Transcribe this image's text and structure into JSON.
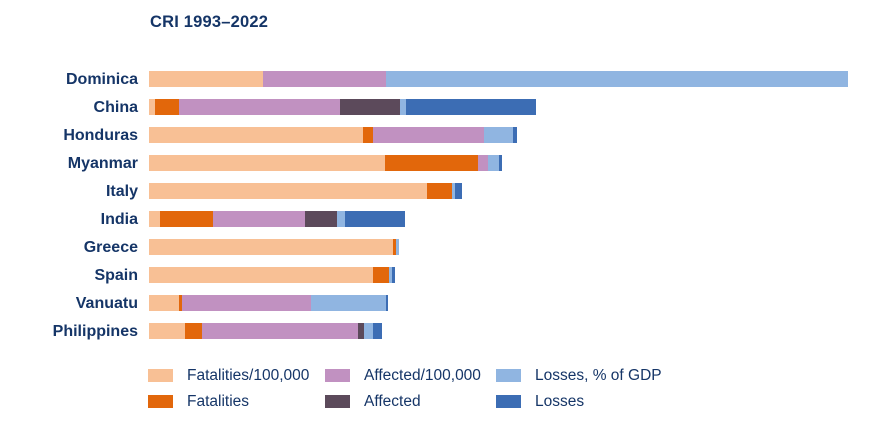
{
  "title": "CRI 1993–2022",
  "colors": {
    "light_orange": "#F8C095",
    "dark_orange": "#E2670B",
    "purple": "#C191C1",
    "dark_purple": "#5C4A5B",
    "light_blue": "#90B5E1",
    "dark_blue": "#3C6DB4",
    "text_navy": "#153567"
  },
  "legend": [
    {
      "label": "Fatalities/100,000",
      "color": "#F8C095"
    },
    {
      "label": "Fatalities",
      "color": "#E2670B"
    },
    {
      "label": "Affected/100,000",
      "color": "#C191C1"
    },
    {
      "label": "Affected",
      "color": "#5C4A5B"
    },
    {
      "label": "Losses, % of GDP",
      "color": "#90B5E1"
    },
    {
      "label": "Losses",
      "color": "#3C6DB4"
    }
  ],
  "chart_data": {
    "type": "bar",
    "orientation": "horizontal",
    "stacked": true,
    "title": "CRI 1993–2022",
    "grid": false,
    "axes_shown": false,
    "legend_position": "bottom",
    "categories": [
      "Dominica",
      "China",
      "Honduras",
      "Myanmar",
      "Italy",
      "India",
      "Greece",
      "Spain",
      "Vanuatu",
      "Philippines"
    ],
    "value_note": "segment lengths estimated in pixels from the unlabeled axis",
    "series": [
      {
        "name": "Fatalities/100,000",
        "color": "#F8C095",
        "values": [
          114,
          6,
          214,
          236,
          278,
          11,
          244,
          224,
          30,
          36
        ]
      },
      {
        "name": "Fatalities",
        "color": "#E2670B",
        "values": [
          0,
          24,
          10,
          93,
          25,
          53,
          3,
          16,
          3,
          17
        ]
      },
      {
        "name": "Affected/100,000",
        "color": "#C191C1",
        "values": [
          123,
          161,
          111,
          10,
          0,
          92,
          0,
          0,
          129,
          156
        ]
      },
      {
        "name": "Affected",
        "color": "#5C4A5B",
        "values": [
          0,
          60,
          0,
          0,
          0,
          32,
          0,
          0,
          0,
          6
        ]
      },
      {
        "name": "Losses, % of GDP",
        "color": "#90B5E1",
        "values": [
          462,
          6,
          29,
          11,
          3,
          8,
          3,
          3,
          75,
          9
        ]
      },
      {
        "name": "Losses",
        "color": "#3C6DB4",
        "values": [
          0,
          130,
          4,
          3,
          7,
          60,
          0,
          3,
          2,
          9
        ]
      }
    ],
    "totals": [
      699,
      387,
      368,
      353,
      313,
      256,
      250,
      246,
      239,
      233
    ]
  }
}
